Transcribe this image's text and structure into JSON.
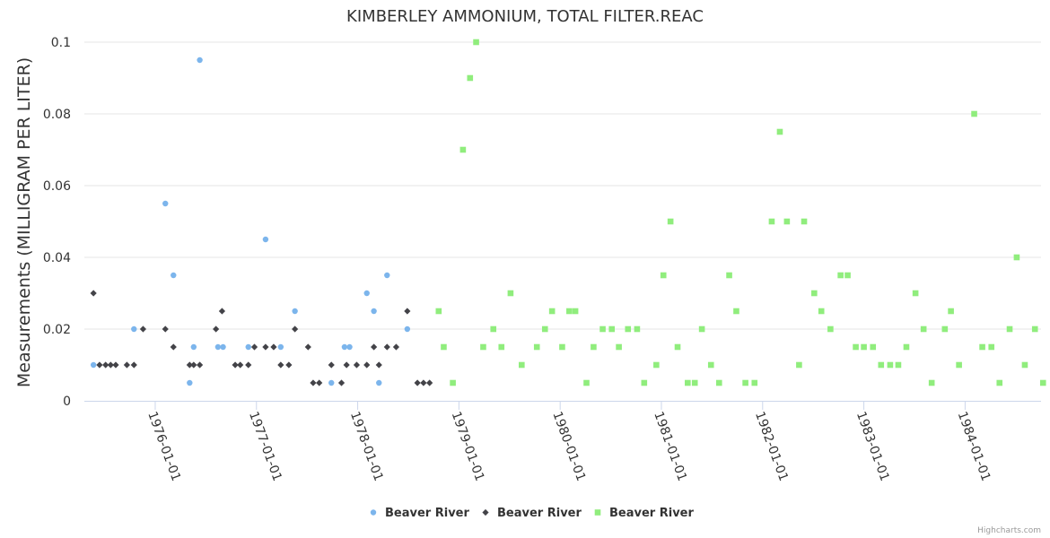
{
  "chart_data": {
    "type": "scatter",
    "title": "KIMBERLEY AMMONIUM, TOTAL FILTER.REAC",
    "xlabel": "",
    "ylabel": "Measurements (MILLIGRAM PER LITER)",
    "ylim": [
      0,
      0.1
    ],
    "yticks": [
      0,
      0.02,
      0.04,
      0.06,
      0.08,
      0.1
    ],
    "ytick_labels": [
      "0",
      "0.02",
      "0.04",
      "0.06",
      "0.08",
      "0.1"
    ],
    "xlim": [
      1975.3,
      1984.75
    ],
    "xticks": [
      1976,
      1977,
      1978,
      1979,
      1980,
      1981,
      1982,
      1983,
      1984
    ],
    "xtick_labels": [
      "1976-01-01",
      "1977-01-01",
      "1978-01-01",
      "1979-01-01",
      "1980-01-01",
      "1981-01-01",
      "1982-01-01",
      "1983-01-01",
      "1984-01-01"
    ],
    "legend_position": "bottom-center",
    "grid": true,
    "credit": "Highcharts.com",
    "series": [
      {
        "name": "Beaver River",
        "marker": "circle",
        "color": "#7cb5ec",
        "points": [
          [
            1975.39,
            0.01
          ],
          [
            1975.79,
            0.02
          ],
          [
            1976.1,
            0.055
          ],
          [
            1976.18,
            0.035
          ],
          [
            1976.34,
            0.005
          ],
          [
            1976.38,
            0.015
          ],
          [
            1976.44,
            0.095
          ],
          [
            1976.62,
            0.015
          ],
          [
            1976.67,
            0.015
          ],
          [
            1976.92,
            0.015
          ],
          [
            1977.09,
            0.045
          ],
          [
            1977.24,
            0.015
          ],
          [
            1977.38,
            0.025
          ],
          [
            1977.74,
            0.005
          ],
          [
            1977.87,
            0.015
          ],
          [
            1977.92,
            0.015
          ],
          [
            1978.09,
            0.03
          ],
          [
            1978.16,
            0.025
          ],
          [
            1978.21,
            0.005
          ],
          [
            1978.29,
            0.035
          ],
          [
            1978.49,
            0.02
          ]
        ]
      },
      {
        "name": "Beaver River",
        "marker": "diamond",
        "color": "#434348",
        "points": [
          [
            1975.39,
            0.03
          ],
          [
            1975.45,
            0.01
          ],
          [
            1975.51,
            0.01
          ],
          [
            1975.56,
            0.01
          ],
          [
            1975.61,
            0.01
          ],
          [
            1975.72,
            0.01
          ],
          [
            1975.79,
            0.01
          ],
          [
            1975.88,
            0.02
          ],
          [
            1976.1,
            0.02
          ],
          [
            1976.18,
            0.015
          ],
          [
            1976.34,
            0.01
          ],
          [
            1976.38,
            0.01
          ],
          [
            1976.44,
            0.01
          ],
          [
            1976.6,
            0.02
          ],
          [
            1976.66,
            0.025
          ],
          [
            1976.79,
            0.01
          ],
          [
            1976.84,
            0.01
          ],
          [
            1976.92,
            0.01
          ],
          [
            1976.98,
            0.015
          ],
          [
            1977.09,
            0.015
          ],
          [
            1977.17,
            0.015
          ],
          [
            1977.24,
            0.01
          ],
          [
            1977.32,
            0.01
          ],
          [
            1977.38,
            0.02
          ],
          [
            1977.51,
            0.015
          ],
          [
            1977.56,
            0.005
          ],
          [
            1977.62,
            0.005
          ],
          [
            1977.74,
            0.01
          ],
          [
            1977.84,
            0.005
          ],
          [
            1977.89,
            0.01
          ],
          [
            1977.99,
            0.01
          ],
          [
            1978.09,
            0.01
          ],
          [
            1978.16,
            0.015
          ],
          [
            1978.21,
            0.01
          ],
          [
            1978.29,
            0.015
          ],
          [
            1978.38,
            0.015
          ],
          [
            1978.49,
            0.025
          ],
          [
            1978.59,
            0.005
          ],
          [
            1978.65,
            0.005
          ],
          [
            1978.71,
            0.005
          ]
        ]
      },
      {
        "name": "Beaver River",
        "marker": "square",
        "color": "#90ed7d",
        "points": [
          [
            1978.8,
            0.025
          ],
          [
            1978.85,
            0.015
          ],
          [
            1978.94,
            0.005
          ],
          [
            1979.04,
            0.07
          ],
          [
            1979.11,
            0.09
          ],
          [
            1979.17,
            0.1
          ],
          [
            1979.24,
            0.015
          ],
          [
            1979.34,
            0.02
          ],
          [
            1979.42,
            0.015
          ],
          [
            1979.51,
            0.03
          ],
          [
            1979.62,
            0.01
          ],
          [
            1979.77,
            0.015
          ],
          [
            1979.85,
            0.02
          ],
          [
            1979.92,
            0.025
          ],
          [
            1980.02,
            0.015
          ],
          [
            1980.09,
            0.025
          ],
          [
            1980.15,
            0.025
          ],
          [
            1980.26,
            0.005
          ],
          [
            1980.33,
            0.015
          ],
          [
            1980.42,
            0.02
          ],
          [
            1980.51,
            0.02
          ],
          [
            1980.58,
            0.015
          ],
          [
            1980.67,
            0.02
          ],
          [
            1980.76,
            0.02
          ],
          [
            1980.83,
            0.005
          ],
          [
            1980.95,
            0.01
          ],
          [
            1981.02,
            0.035
          ],
          [
            1981.09,
            0.05
          ],
          [
            1981.16,
            0.015
          ],
          [
            1981.26,
            0.005
          ],
          [
            1981.33,
            0.005
          ],
          [
            1981.4,
            0.02
          ],
          [
            1981.49,
            0.01
          ],
          [
            1981.57,
            0.005
          ],
          [
            1981.67,
            0.035
          ],
          [
            1981.74,
            0.025
          ],
          [
            1981.83,
            0.005
          ],
          [
            1981.92,
            0.005
          ],
          [
            1982.09,
            0.05
          ],
          [
            1982.17,
            0.075
          ],
          [
            1982.24,
            0.05
          ],
          [
            1982.36,
            0.01
          ],
          [
            1982.41,
            0.05
          ],
          [
            1982.51,
            0.03
          ],
          [
            1982.58,
            0.025
          ],
          [
            1982.67,
            0.02
          ],
          [
            1982.77,
            0.035
          ],
          [
            1982.84,
            0.035
          ],
          [
            1982.92,
            0.015
          ],
          [
            1983.0,
            0.015
          ],
          [
            1983.09,
            0.015
          ],
          [
            1983.17,
            0.01
          ],
          [
            1983.26,
            0.01
          ],
          [
            1983.34,
            0.01
          ],
          [
            1983.42,
            0.015
          ],
          [
            1983.51,
            0.03
          ],
          [
            1983.59,
            0.02
          ],
          [
            1983.67,
            0.005
          ],
          [
            1983.8,
            0.02
          ],
          [
            1983.86,
            0.025
          ],
          [
            1983.94,
            0.01
          ],
          [
            1984.09,
            0.08
          ],
          [
            1984.17,
            0.015
          ],
          [
            1984.26,
            0.015
          ],
          [
            1984.34,
            0.005
          ],
          [
            1984.44,
            0.02
          ],
          [
            1984.51,
            0.04
          ],
          [
            1984.59,
            0.01
          ],
          [
            1984.69,
            0.02
          ],
          [
            1984.77,
            0.005
          ]
        ]
      }
    ]
  }
}
